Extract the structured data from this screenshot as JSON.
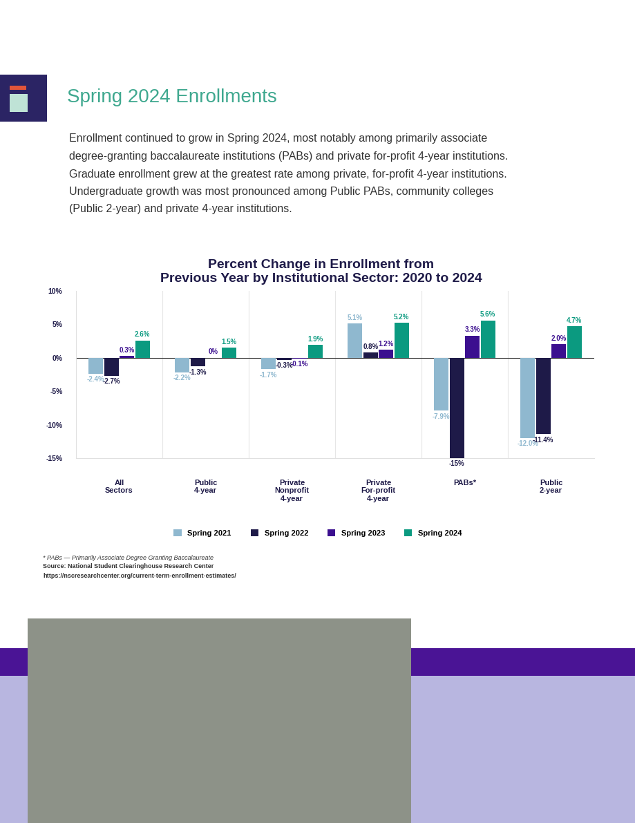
{
  "header": {
    "title": "Spring 2024 Enrollments"
  },
  "paragraph": [
    "Enrollment continued to grow in Spring 2024, most notably among primarily associate",
    "degree-granting baccalaureate institutions (PABs) and private for-profit 4-year institutions.",
    "Graduate enrollment grew at the greatest rate among private, for-profit 4-year institutions.",
    "Undergraduate growth was most pronounced among Public PABs, community colleges",
    "(Public 2-year) and private 4-year institutions."
  ],
  "chart_data": {
    "type": "bar",
    "title": "Percent Change in Enrollment from\nPrevious Year by Institutional Sector: 2020 to 2024",
    "categories": [
      "All\nSectors",
      "Public\n4-year",
      "Private\nNonprofit\n4-year",
      "Private\nFor-profit\n4-year",
      "PABs*",
      "Public\n2-year"
    ],
    "series": [
      {
        "name": "Spring 2021",
        "color": "#8fb8cf",
        "values": [
          -2.4,
          -2.2,
          -1.7,
          5.1,
          -7.9,
          -12.0
        ],
        "value_labels": [
          "-2.4%",
          "-2.2%",
          "-1.7%",
          "5.1%",
          "-7.9%",
          "-12.0%"
        ]
      },
      {
        "name": "Spring 2022",
        "color": "#1e1a48",
        "values": [
          -2.7,
          -1.3,
          -0.3,
          0.8,
          -15,
          -11.4
        ],
        "value_labels": [
          "-2.7%",
          "-1.3%",
          "-0.3%",
          "0.8%",
          "-15%",
          "-11.4%"
        ]
      },
      {
        "name": "Spring 2023",
        "color": "#3b0f8f",
        "values": [
          0.3,
          0,
          -0.1,
          1.2,
          3.3,
          2.0
        ],
        "value_labels": [
          "0.3%",
          "0%",
          "-0.1%",
          "1.2%",
          "3.3%",
          "2.0%"
        ]
      },
      {
        "name": "Spring 2024",
        "color": "#0b9a80",
        "values": [
          2.6,
          1.5,
          1.9,
          5.2,
          5.6,
          4.7
        ],
        "value_labels": [
          "2.6%",
          "1.5%",
          "1.9%",
          "5.2%",
          "5.6%",
          "4.7%"
        ]
      }
    ],
    "ylim": [
      -15,
      10
    ],
    "yticks": [
      {
        "value": -15,
        "label": "-15%"
      },
      {
        "value": -10,
        "label": "-10%"
      },
      {
        "value": -5,
        "label": "-5%"
      },
      {
        "value": 0,
        "label": "0%"
      },
      {
        "value": 5,
        "label": "5%"
      },
      {
        "value": 10,
        "label": "10%"
      }
    ],
    "legend": "upper center",
    "data_labels": true
  },
  "footnotes": [
    "* PABs — Primarily Associate Degree Granting Baccalaureate",
    "Source: National Student Clearinghouse Research Center",
    "https://nscresearchcenter.org/current-term-enrollment-estimates/"
  ]
}
